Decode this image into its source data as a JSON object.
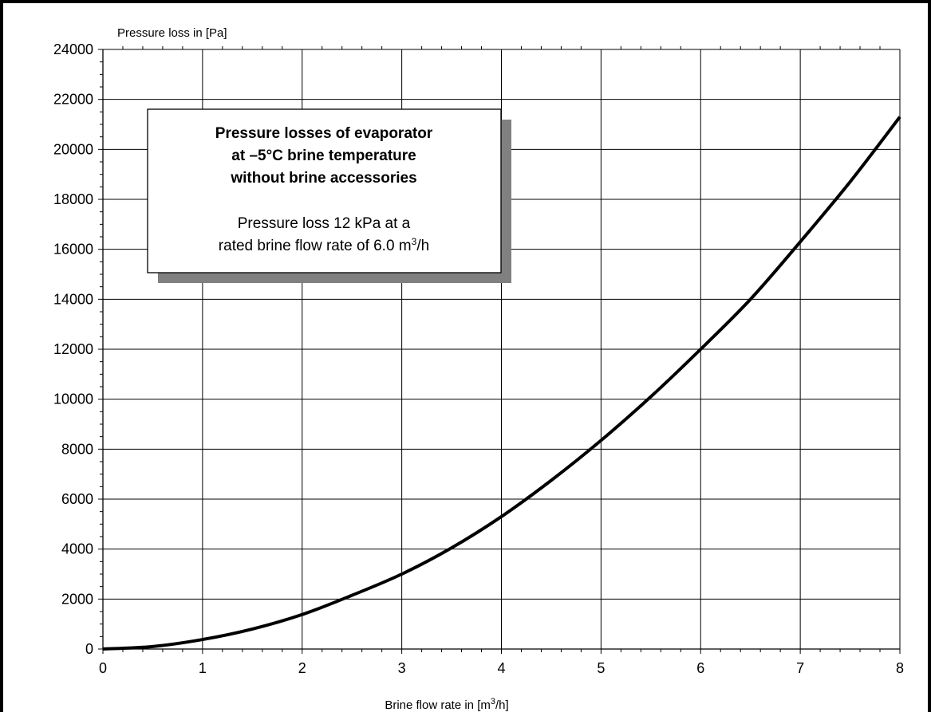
{
  "chart_data": {
    "type": "line",
    "title": "",
    "xlabel_prefix": "Brine flow rate in [m",
    "xlabel_sup": "3",
    "xlabel_suffix": "/h]",
    "ylabel": "Pressure loss in [Pa]",
    "xlim": [
      0,
      8
    ],
    "ylim": [
      0,
      24000
    ],
    "x_ticks": [
      0,
      1,
      2,
      3,
      4,
      5,
      6,
      7,
      8
    ],
    "y_ticks": [
      0,
      2000,
      4000,
      6000,
      8000,
      10000,
      12000,
      14000,
      16000,
      18000,
      20000,
      22000,
      24000
    ],
    "grid": true,
    "series": [
      {
        "x": [
          0,
          0.5,
          1,
          1.5,
          2,
          2.5,
          3,
          3.5,
          4,
          4.5,
          5,
          5.5,
          6,
          6.5,
          7,
          7.5,
          8
        ],
        "y": [
          0,
          100,
          380,
          800,
          1380,
          2150,
          3000,
          4050,
          5300,
          6750,
          8350,
          10100,
          12000,
          14000,
          16300,
          18700,
          21300
        ]
      }
    ],
    "annotation": {
      "title_lines": [
        "Pressure losses of evaporator",
        "at –5°C brine temperature",
        "without brine accessories"
      ],
      "text_line1": "Pressure loss 12 kPa at a",
      "text_line2_prefix": "rated brine flow rate of 6.0 m",
      "text_line2_sup": "3",
      "text_line2_suffix": "/h"
    },
    "colors": {
      "line": "#000000",
      "grid": "#000000",
      "shadow": "#808080",
      "box": "#ffffff"
    }
  }
}
